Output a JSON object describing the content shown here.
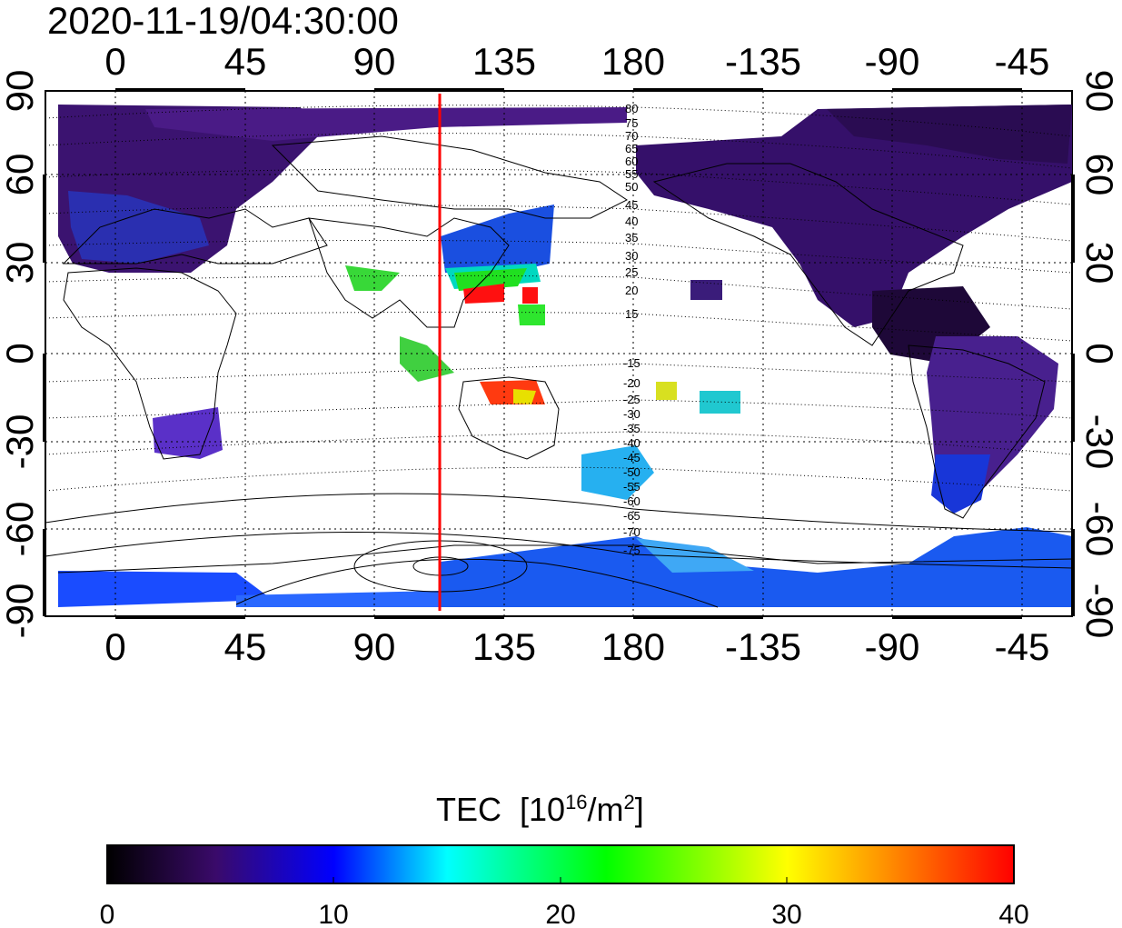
{
  "title": "2020-11-19/04:30:00",
  "map": {
    "lon_ticks": [
      "0",
      "45",
      "90",
      "135",
      "180",
      "-135",
      "-90",
      "-45"
    ],
    "lat_ticks": [
      "90",
      "60",
      "30",
      "0",
      "-30",
      "-60",
      "-90"
    ],
    "meridian_marker_lon": 113,
    "marker_color": "#ff0000",
    "contour_labels_north": [
      "80",
      "75",
      "70",
      "65",
      "60",
      "55",
      "50",
      "45",
      "40",
      "35",
      "30",
      "25",
      "20",
      "15"
    ],
    "contour_labels_south": [
      "-15",
      "-20",
      "-25",
      "-30",
      "-35",
      "-40",
      "-45",
      "-50",
      "-55",
      "-60",
      "-65",
      "-70",
      "-75"
    ]
  },
  "colorbar": {
    "label": "TEC",
    "unit_prefix": "[10",
    "unit_exp": "16",
    "unit_mid": "/m",
    "unit_exp2": "2",
    "unit_suffix": "]",
    "ticks": [
      "0",
      "10",
      "20",
      "30",
      "40"
    ],
    "min": 0,
    "max": 40,
    "stops": [
      "#000000",
      "#3a0a6a",
      "#0000ff",
      "#00ffff",
      "#00ff00",
      "#ffff00",
      "#ff0000"
    ]
  }
}
